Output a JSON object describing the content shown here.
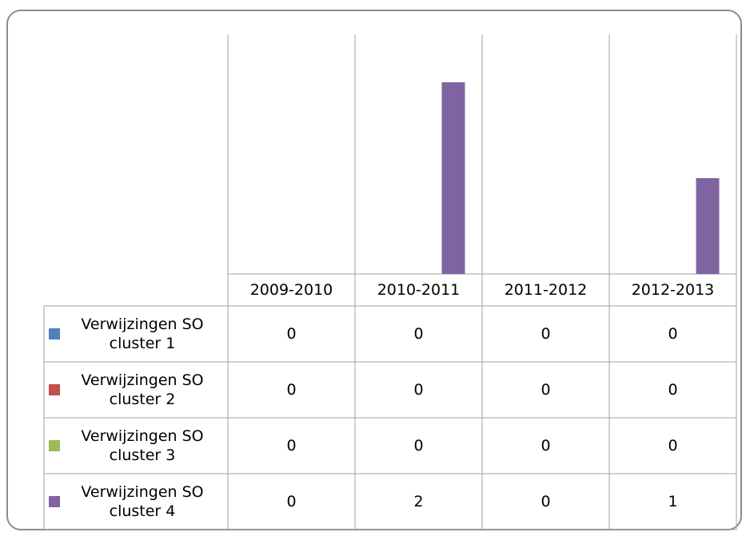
{
  "chart_data": {
    "type": "bar",
    "categories": [
      "2009-2010",
      "2010-2011",
      "2011-2012",
      "2012-2013"
    ],
    "series": [
      {
        "name": "Verwijzingen SO cluster 1",
        "color": "#4f81bd",
        "values": [
          0,
          0,
          0,
          0
        ]
      },
      {
        "name": "Verwijzingen SO cluster 2",
        "color": "#c0504d",
        "values": [
          0,
          0,
          0,
          0
        ]
      },
      {
        "name": "Verwijzingen SO cluster 3",
        "color": "#9bbb59",
        "values": [
          0,
          0,
          0,
          0
        ]
      },
      {
        "name": "Verwijzingen SO cluster 4",
        "color": "#8064a2",
        "values": [
          0,
          2,
          0,
          1
        ]
      }
    ],
    "ylim": [
      0,
      2.5
    ]
  }
}
